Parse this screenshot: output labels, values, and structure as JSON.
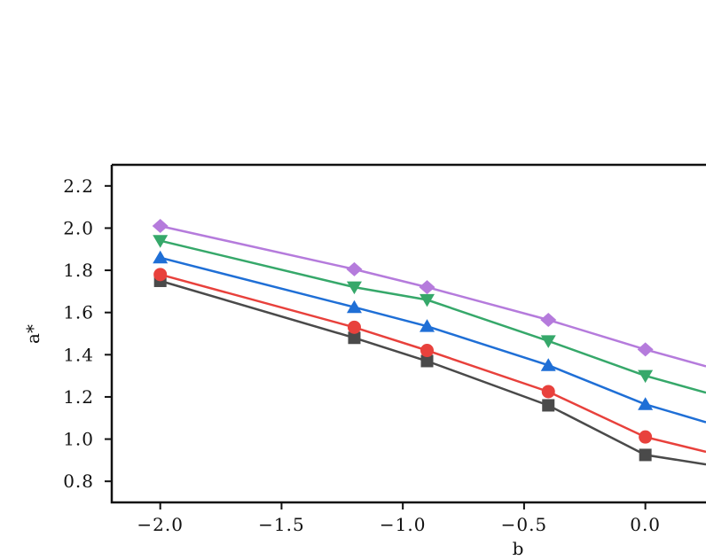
{
  "chart_data": {
    "type": "line",
    "xlabel": "b",
    "ylabel": "a*",
    "xlim": [
      -2.2,
      0.25
    ],
    "ylim": [
      0.7,
      2.3
    ],
    "xticks": [
      -2.0,
      -1.5,
      -1.0,
      -0.5,
      0.0
    ],
    "xtick_labels": [
      "−2.0",
      "−1.5",
      "−1.0",
      "−0.5",
      "0.0"
    ],
    "yticks": [
      0.8,
      1.0,
      1.2,
      1.4,
      1.6,
      1.8,
      2.0,
      2.2
    ],
    "ytick_labels": [
      "0.8",
      "1.0",
      "1.2",
      "1.4",
      "1.6",
      "1.8",
      "2.0",
      "2.2"
    ],
    "grid": false,
    "x": [
      -2.0,
      -1.2,
      -0.9,
      -0.4,
      0.0,
      0.25
    ],
    "series": [
      {
        "marker": "square",
        "color": "#4a4a4a",
        "values": [
          1.75,
          1.48,
          1.37,
          1.16,
          0.925,
          0.88
        ]
      },
      {
        "marker": "circle",
        "color": "#e8413c",
        "values": [
          1.78,
          1.53,
          1.42,
          1.225,
          1.01,
          0.94
        ]
      },
      {
        "marker": "triangle-up",
        "color": "#1f6fd6",
        "values": [
          1.86,
          1.625,
          1.535,
          1.35,
          1.165,
          1.08
        ]
      },
      {
        "marker": "triangle-down",
        "color": "#36a86a",
        "values": [
          1.94,
          1.72,
          1.66,
          1.465,
          1.3,
          1.22
        ]
      },
      {
        "marker": "diamond",
        "color": "#b57bdc",
        "values": [
          2.01,
          1.805,
          1.72,
          1.565,
          1.425,
          1.345
        ]
      }
    ]
  }
}
